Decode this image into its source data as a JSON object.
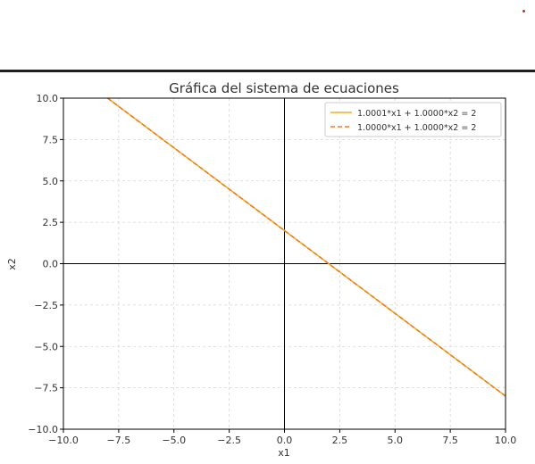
{
  "colors": {
    "series1": "#f2b021",
    "series2": "#ed7b2d",
    "grid": "#d5d5d5",
    "axis": "#000000",
    "corner_dot": "#d62728"
  },
  "chart_data": {
    "type": "line",
    "title": "Gráfica del sistema de ecuaciones",
    "xlabel": "x1",
    "ylabel": "x2",
    "xlim": [
      -10,
      10
    ],
    "ylim": [
      -10,
      10
    ],
    "xticks": [
      "−10.0",
      "−7.5",
      "−5.0",
      "−2.5",
      "0.0",
      "2.5",
      "5.0",
      "7.5",
      "10.0"
    ],
    "yticks": [
      "10.0",
      "7.5",
      "5.0",
      "2.5",
      "0.0",
      "−2.5",
      "−5.0",
      "−7.5",
      "−10.0"
    ],
    "xtick_values": [
      -10,
      -7.5,
      -5,
      -2.5,
      0,
      2.5,
      5,
      7.5,
      10
    ],
    "ytick_values": [
      10,
      7.5,
      5,
      2.5,
      0,
      -2.5,
      -5,
      -7.5,
      -10
    ],
    "grid": true,
    "grid_style": "dashed",
    "legend_position": "top-right",
    "series": [
      {
        "name": "1.0001*x1 + 1.0000*x2 = 2",
        "style": "solid",
        "x": [
          -8.0,
          10.0
        ],
        "y": [
          10.0,
          -8.0
        ]
      },
      {
        "name": "1.0000*x1 + 1.0000*x2 = 2",
        "style": "dashed",
        "x": [
          -8.0,
          10.0
        ],
        "y": [
          10.0,
          -8.0
        ]
      }
    ]
  }
}
